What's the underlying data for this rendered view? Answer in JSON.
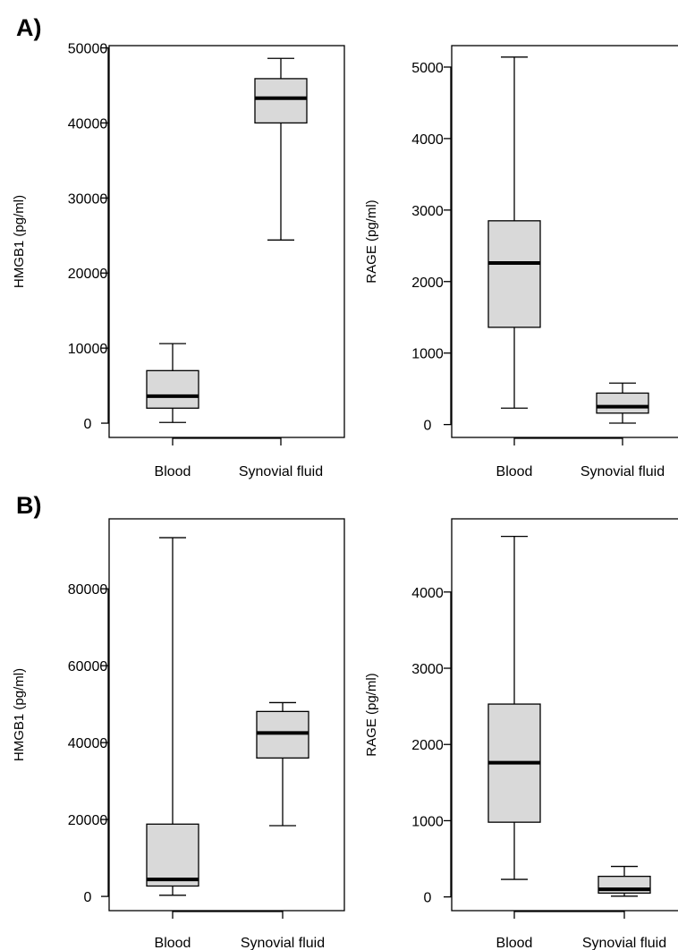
{
  "panels": [
    {
      "label": "A)"
    },
    {
      "label": "B)"
    }
  ],
  "chart_data": [
    {
      "type": "boxplot",
      "panel": "A)",
      "ylabel": "HMGB1 (pg/ml)",
      "categories": [
        "Blood",
        "Synovial fluid"
      ],
      "yticks": [
        0,
        10000,
        20000,
        30000,
        40000,
        50000
      ],
      "ylim": [
        -1900,
        50300
      ],
      "boxes": [
        {
          "category": "Blood",
          "min": 100,
          "q1": 2000,
          "median": 3600,
          "q3": 7000,
          "max": 10600
        },
        {
          "category": "Synovial fluid",
          "min": 24400,
          "q1": 40000,
          "median": 43300,
          "q3": 45900,
          "max": 48600
        }
      ],
      "box_fill": "#d9d9d9"
    },
    {
      "type": "boxplot",
      "panel": "A)",
      "ylabel": "RAGE (pg/ml)",
      "categories": [
        "Blood",
        "Synovial fluid"
      ],
      "yticks": [
        0,
        1000,
        2000,
        3000,
        4000,
        5000
      ],
      "ylim": [
        -180,
        5300
      ],
      "boxes": [
        {
          "category": "Blood",
          "min": 230,
          "q1": 1360,
          "median": 2260,
          "q3": 2850,
          "max": 5140
        },
        {
          "category": "Synovial fluid",
          "min": 20,
          "q1": 160,
          "median": 250,
          "q3": 440,
          "max": 580
        }
      ],
      "box_fill": "#d9d9d9"
    },
    {
      "type": "boxplot",
      "panel": "B)",
      "ylabel": "HMGB1 (pg/ml)",
      "categories": [
        "Blood",
        "Synovial fluid"
      ],
      "yticks": [
        0,
        20000,
        40000,
        60000,
        80000
      ],
      "ylim": [
        -3700,
        98200
      ],
      "boxes": [
        {
          "category": "Blood",
          "min": 300,
          "q1": 2700,
          "median": 4400,
          "q3": 18800,
          "max": 93300
        },
        {
          "category": "Synovial fluid",
          "min": 18400,
          "q1": 36000,
          "median": 42500,
          "q3": 48100,
          "max": 50400
        }
      ],
      "box_fill": "#d9d9d9"
    },
    {
      "type": "boxplot",
      "panel": "B)",
      "ylabel": "RAGE (pg/ml)",
      "categories": [
        "Blood",
        "Synovial fluid"
      ],
      "yticks": [
        0,
        1000,
        2000,
        3000,
        4000
      ],
      "ylim": [
        -180,
        4960
      ],
      "boxes": [
        {
          "category": "Blood",
          "min": 230,
          "q1": 980,
          "median": 1760,
          "q3": 2530,
          "max": 4730
        },
        {
          "category": "Synovial fluid",
          "min": 10,
          "q1": 50,
          "median": 100,
          "q3": 270,
          "max": 400
        }
      ],
      "box_fill": "#d9d9d9"
    }
  ]
}
